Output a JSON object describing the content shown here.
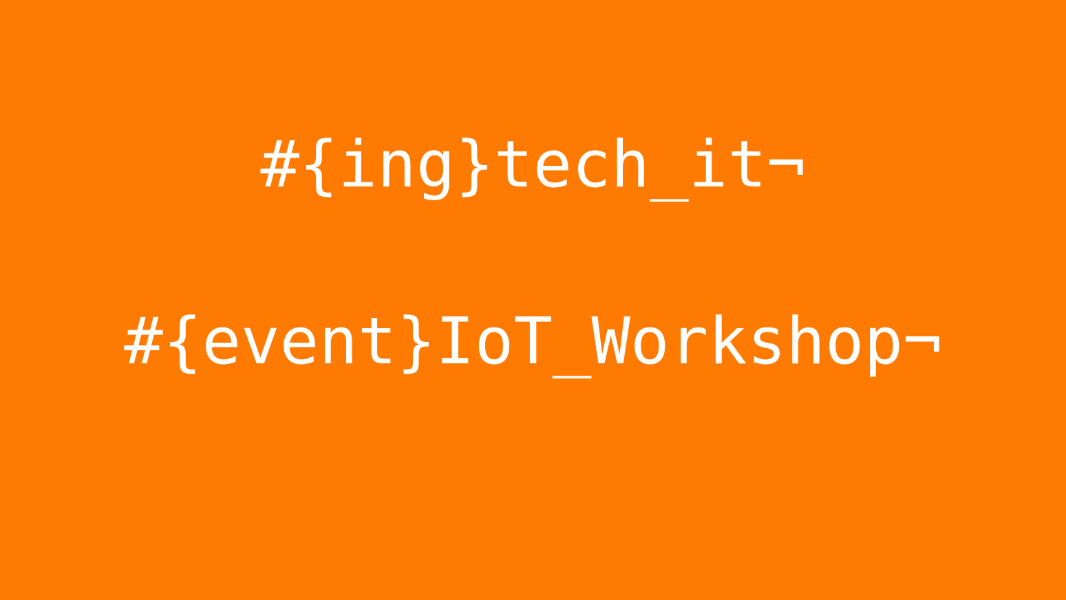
{
  "slide": {
    "background_color": "#ff7a00",
    "text_color": "#ffffff",
    "lines": [
      "#{ing}tech_it¬",
      "#{event}IoT_Workshop¬"
    ]
  }
}
